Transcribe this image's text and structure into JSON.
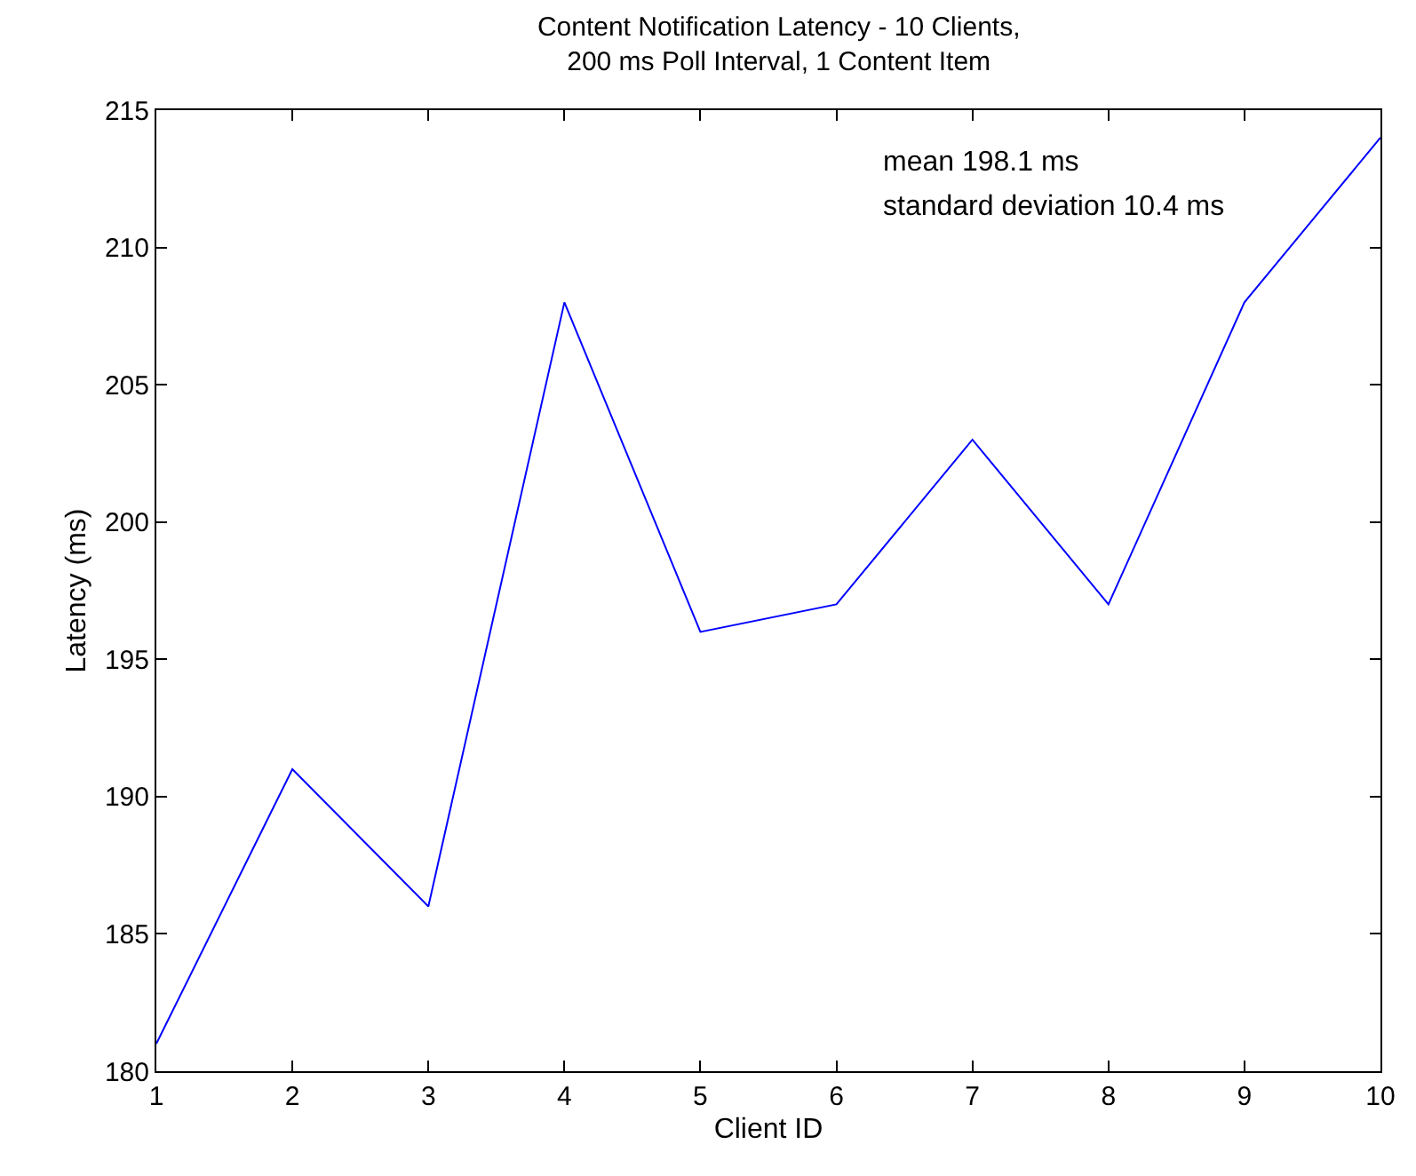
{
  "chart_data": {
    "type": "line",
    "title": "Content Notification Latency - 10 Clients,\n200 ms Poll Interval, 1 Content Item",
    "xlabel": "Client ID",
    "ylabel": "Latency (ms)",
    "x": [
      1,
      2,
      3,
      4,
      5,
      6,
      7,
      8,
      9,
      10
    ],
    "series": [
      {
        "color": "#0000ff",
        "values": [
          181,
          191,
          186,
          208,
          196,
          197,
          203,
          197,
          208,
          214
        ]
      }
    ],
    "xlim": [
      1,
      10
    ],
    "xticks": [
      1,
      2,
      3,
      4,
      5,
      6,
      7,
      8,
      9,
      10
    ],
    "ylim": [
      180,
      215
    ],
    "yticks": [
      180,
      185,
      190,
      195,
      200,
      205,
      210,
      215
    ],
    "annotations": [
      "mean 198.1 ms",
      "standard deviation 10.4 ms"
    ],
    "marker": "none",
    "line_style": "solid"
  }
}
